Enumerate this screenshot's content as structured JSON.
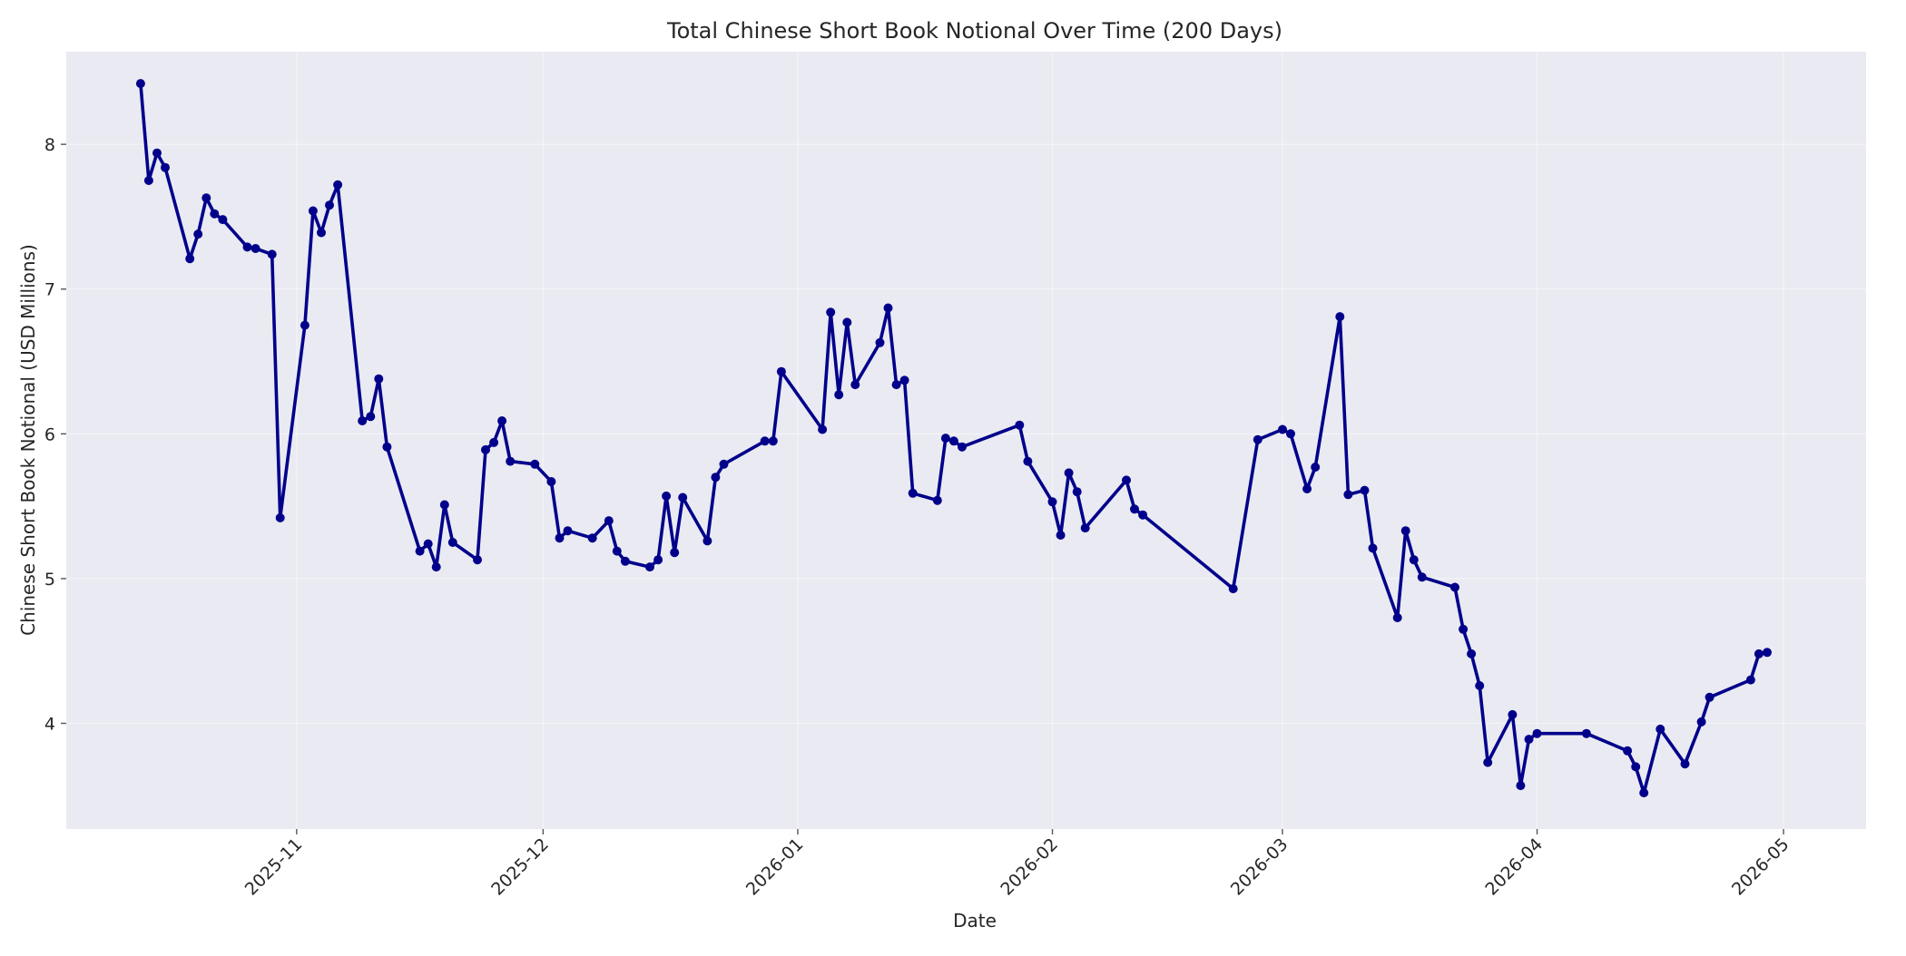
{
  "chart_data": {
    "type": "line",
    "title": "Total Chinese Short Book Notional Over Time (200 Days)",
    "xlabel": "Date",
    "ylabel": "Chinese Short Book Notional (USD Millions)",
    "x_type": "date",
    "x_tick_labels": [
      "2025-11",
      "2025-12",
      "2026-01",
      "2026-02",
      "2026-03",
      "2026-04",
      "2026-05"
    ],
    "x_tick_dates": [
      "2025-11-01",
      "2025-12-01",
      "2026-01-01",
      "2026-02-01",
      "2026-03-01",
      "2026-04-01",
      "2026-05-01"
    ],
    "xlim": [
      "2025-10-13",
      "2026-05-02"
    ],
    "y_ticks": [
      4,
      5,
      6,
      7,
      8
    ],
    "ylim": [
      3.27,
      8.64
    ],
    "grid": true,
    "series": [
      {
        "color": "#00008b",
        "marker": "circle",
        "points": [
          [
            "2025-10-13",
            8.42
          ],
          [
            "2025-10-14",
            7.75
          ],
          [
            "2025-10-15",
            7.94
          ],
          [
            "2025-10-16",
            7.84
          ],
          [
            "2025-10-19",
            7.21
          ],
          [
            "2025-10-20",
            7.38
          ],
          [
            "2025-10-21",
            7.63
          ],
          [
            "2025-10-22",
            7.52
          ],
          [
            "2025-10-23",
            7.48
          ],
          [
            "2025-10-26",
            7.29
          ],
          [
            "2025-10-27",
            7.28
          ],
          [
            "2025-10-29",
            7.24
          ],
          [
            "2025-10-30",
            5.42
          ],
          [
            "2025-11-02",
            6.75
          ],
          [
            "2025-11-03",
            7.54
          ],
          [
            "2025-11-04",
            7.39
          ],
          [
            "2025-11-05",
            7.58
          ],
          [
            "2025-11-06",
            7.72
          ],
          [
            "2025-11-09",
            6.09
          ],
          [
            "2025-11-10",
            6.12
          ],
          [
            "2025-11-11",
            6.38
          ],
          [
            "2025-11-12",
            5.91
          ],
          [
            "2025-11-16",
            5.19
          ],
          [
            "2025-11-17",
            5.24
          ],
          [
            "2025-11-18",
            5.08
          ],
          [
            "2025-11-19",
            5.51
          ],
          [
            "2025-11-20",
            5.25
          ],
          [
            "2025-11-23",
            5.13
          ],
          [
            "2025-11-24",
            5.89
          ],
          [
            "2025-11-25",
            5.94
          ],
          [
            "2025-11-26",
            6.09
          ],
          [
            "2025-11-27",
            5.81
          ],
          [
            "2025-11-30",
            5.79
          ],
          [
            "2025-12-02",
            5.67
          ],
          [
            "2025-12-03",
            5.28
          ],
          [
            "2025-12-04",
            5.33
          ],
          [
            "2025-12-07",
            5.28
          ],
          [
            "2025-12-09",
            5.4
          ],
          [
            "2025-12-10",
            5.19
          ],
          [
            "2025-12-11",
            5.12
          ],
          [
            "2025-12-14",
            5.08
          ],
          [
            "2025-12-15",
            5.13
          ],
          [
            "2025-12-16",
            5.57
          ],
          [
            "2025-12-17",
            5.18
          ],
          [
            "2025-12-18",
            5.56
          ],
          [
            "2025-12-21",
            5.26
          ],
          [
            "2025-12-22",
            5.7
          ],
          [
            "2025-12-23",
            5.79
          ],
          [
            "2025-12-28",
            5.95
          ],
          [
            "2025-12-29",
            5.95
          ],
          [
            "2025-12-30",
            6.43
          ],
          [
            "2026-01-04",
            6.03
          ],
          [
            "2026-01-05",
            6.84
          ],
          [
            "2026-01-06",
            6.27
          ],
          [
            "2026-01-07",
            6.77
          ],
          [
            "2026-01-08",
            6.34
          ],
          [
            "2026-01-11",
            6.63
          ],
          [
            "2026-01-12",
            6.87
          ],
          [
            "2026-01-13",
            6.34
          ],
          [
            "2026-01-14",
            6.37
          ],
          [
            "2026-01-15",
            5.59
          ],
          [
            "2026-01-18",
            5.54
          ],
          [
            "2026-01-19",
            5.97
          ],
          [
            "2026-01-20",
            5.95
          ],
          [
            "2026-01-21",
            5.91
          ],
          [
            "2026-01-28",
            6.06
          ],
          [
            "2026-01-29",
            5.81
          ],
          [
            "2026-02-01",
            5.53
          ],
          [
            "2026-02-02",
            5.3
          ],
          [
            "2026-02-03",
            5.73
          ],
          [
            "2026-02-04",
            5.6
          ],
          [
            "2026-02-05",
            5.35
          ],
          [
            "2026-02-10",
            5.68
          ],
          [
            "2026-02-11",
            5.48
          ],
          [
            "2026-02-12",
            5.44
          ],
          [
            "2026-02-23",
            4.93
          ],
          [
            "2026-02-26",
            5.96
          ],
          [
            "2026-03-01",
            6.03
          ],
          [
            "2026-03-02",
            6.0
          ],
          [
            "2026-03-04",
            5.62
          ],
          [
            "2026-03-05",
            5.77
          ],
          [
            "2026-03-08",
            6.81
          ],
          [
            "2026-03-09",
            5.58
          ],
          [
            "2026-03-11",
            5.61
          ],
          [
            "2026-03-12",
            5.21
          ],
          [
            "2026-03-15",
            4.73
          ],
          [
            "2026-03-16",
            5.33
          ],
          [
            "2026-03-17",
            5.13
          ],
          [
            "2026-03-18",
            5.01
          ],
          [
            "2026-03-22",
            4.94
          ],
          [
            "2026-03-23",
            4.65
          ],
          [
            "2026-03-24",
            4.48
          ],
          [
            "2026-03-25",
            4.26
          ],
          [
            "2026-03-26",
            3.73
          ],
          [
            "2026-03-29",
            4.06
          ],
          [
            "2026-03-30",
            3.57
          ],
          [
            "2026-03-31",
            3.89
          ],
          [
            "2026-04-01",
            3.93
          ],
          [
            "2026-04-07",
            3.93
          ],
          [
            "2026-04-12",
            3.81
          ],
          [
            "2026-04-13",
            3.7
          ],
          [
            "2026-04-14",
            3.52
          ],
          [
            "2026-04-16",
            3.96
          ],
          [
            "2026-04-19",
            3.72
          ],
          [
            "2026-04-21",
            4.01
          ],
          [
            "2026-04-22",
            4.18
          ],
          [
            "2026-04-27",
            4.3
          ],
          [
            "2026-04-28",
            4.48
          ],
          [
            "2026-04-29",
            4.49
          ]
        ]
      }
    ]
  }
}
